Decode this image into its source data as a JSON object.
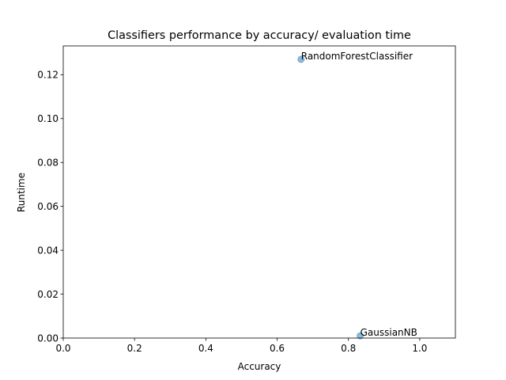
{
  "chart_data": {
    "type": "scatter",
    "title": "Classifiers performance by accuracy/ evaluation time",
    "xlabel": "Accuracy",
    "ylabel": "Runtime",
    "xlim": [
      0,
      1.1
    ],
    "ylim": [
      0,
      0.1331
    ],
    "x_ticks": [
      0.0,
      0.2,
      0.4,
      0.6,
      0.8,
      1.0
    ],
    "x_tick_labels": [
      "0.0",
      "0.2",
      "0.4",
      "0.6",
      "0.8",
      "1.0"
    ],
    "y_ticks": [
      0.0,
      0.02,
      0.04,
      0.06,
      0.08,
      0.1,
      0.12
    ],
    "y_tick_labels": [
      "0.00",
      "0.02",
      "0.04",
      "0.06",
      "0.08",
      "0.10",
      "0.12"
    ],
    "grid": false,
    "points": [
      {
        "label": "RandomForestClassifier",
        "x": 0.667,
        "y": 0.127
      },
      {
        "label": "GaussianNB",
        "x": 0.833,
        "y": 0.001
      }
    ],
    "marker_color": "#1f77b4",
    "marker_alpha": 0.5
  }
}
